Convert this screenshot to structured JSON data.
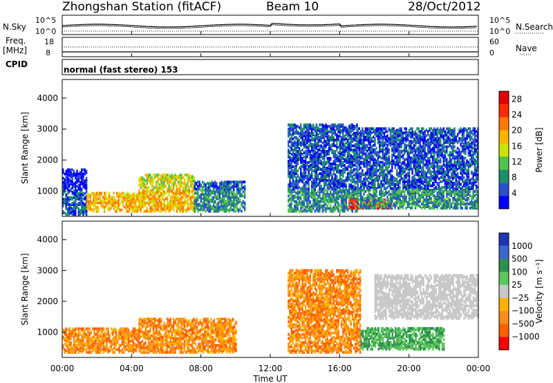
{
  "header": {
    "station": "Zhongshan Station (fitACF)",
    "beam": "Beam 10",
    "date": "28/Oct/2012"
  },
  "strip": {
    "nsky_label": "N.Sky",
    "nsky_ticks": [
      "10^5",
      "10^0"
    ],
    "nsearch_label": "N.Search",
    "freq_label": "Freq.",
    "freq_unit": "[MHz]",
    "freq_ticks": [
      "18",
      "8"
    ],
    "nave_ticks": [
      "60",
      "0"
    ],
    "nave_label": "Nave",
    "cpid_label": "CPID",
    "cpid_text": "normal (fast stereo) 153"
  },
  "colors": {
    "power": [
      "#0000ff",
      "#2a52c8",
      "#1d8f6a",
      "#52c34a",
      "#cde300",
      "#ffb400",
      "#ff7a00",
      "#ff2b00",
      "#e00000"
    ],
    "velocity": [
      "#ff0000",
      "#ff5f00",
      "#ff8c1a",
      "#ffb000",
      "#c8c8c8",
      "#5cc85c",
      "#2f8f4e",
      "#3d66c8",
      "#1f35b8"
    ]
  },
  "chart_data": [
    {
      "type": "heatmap",
      "title": "",
      "ylabel": "Slant Range [km]",
      "xlabel": "",
      "ylim": [
        180,
        4600
      ],
      "xlim": [
        "00:00",
        "24:00"
      ],
      "yticks": [
        "1000",
        "2000",
        "3000",
        "4000"
      ],
      "colorbar": {
        "label": "Power [dB]",
        "ticks": [
          "4",
          "8",
          "12",
          "16",
          "20",
          "24",
          "28"
        ],
        "range": [
          0,
          30
        ]
      },
      "regions": [
        {
          "t": [
            0.0,
            1.4
          ],
          "r": [
            200,
            1650
          ],
          "level": "low"
        },
        {
          "t": [
            1.4,
            4.4
          ],
          "r": [
            300,
            900
          ],
          "level": "high"
        },
        {
          "t": [
            4.4,
            7.6
          ],
          "r": [
            300,
            1500
          ],
          "level": "high"
        },
        {
          "t": [
            7.6,
            10.5
          ],
          "r": [
            300,
            1250
          ],
          "level": "mid"
        },
        {
          "t": [
            13.0,
            17.0
          ],
          "r": [
            300,
            3100
          ],
          "level": "mid"
        },
        {
          "t": [
            16.5,
            19.0
          ],
          "r": [
            400,
            700
          ],
          "level": "max"
        },
        {
          "t": [
            17.0,
            24.0
          ],
          "r": [
            400,
            3000
          ],
          "level": "mid"
        }
      ]
    },
    {
      "type": "heatmap",
      "title": "",
      "ylabel": "Slant Range [km]",
      "xlabel": "Time UT",
      "ylim": [
        180,
        4600
      ],
      "xlim": [
        "00:00",
        "24:00"
      ],
      "xticks": [
        "00:00",
        "04:00",
        "08:00",
        "12:00",
        "16:00",
        "20:00",
        "00:00"
      ],
      "yticks": [
        "1000",
        "2000",
        "3000",
        "4000"
      ],
      "colorbar": {
        "label": "Velocity [m s⁻¹]",
        "ticks": [
          "1000",
          "500",
          "100",
          "25",
          "−25",
          "−100",
          "−500",
          "−1000"
        ]
      },
      "regions": [
        {
          "t": [
            0.0,
            4.4
          ],
          "r": [
            300,
            1100
          ],
          "level": "negative"
        },
        {
          "t": [
            4.4,
            10.0
          ],
          "r": [
            300,
            1400
          ],
          "level": "negative"
        },
        {
          "t": [
            13.0,
            17.2
          ],
          "r": [
            300,
            3000
          ],
          "level": "negative"
        },
        {
          "t": [
            17.2,
            22.0
          ],
          "r": [
            400,
            1100
          ],
          "level": "positive"
        },
        {
          "t": [
            18.0,
            24.0
          ],
          "r": [
            1400,
            2800
          ],
          "level": "ground"
        }
      ]
    }
  ]
}
